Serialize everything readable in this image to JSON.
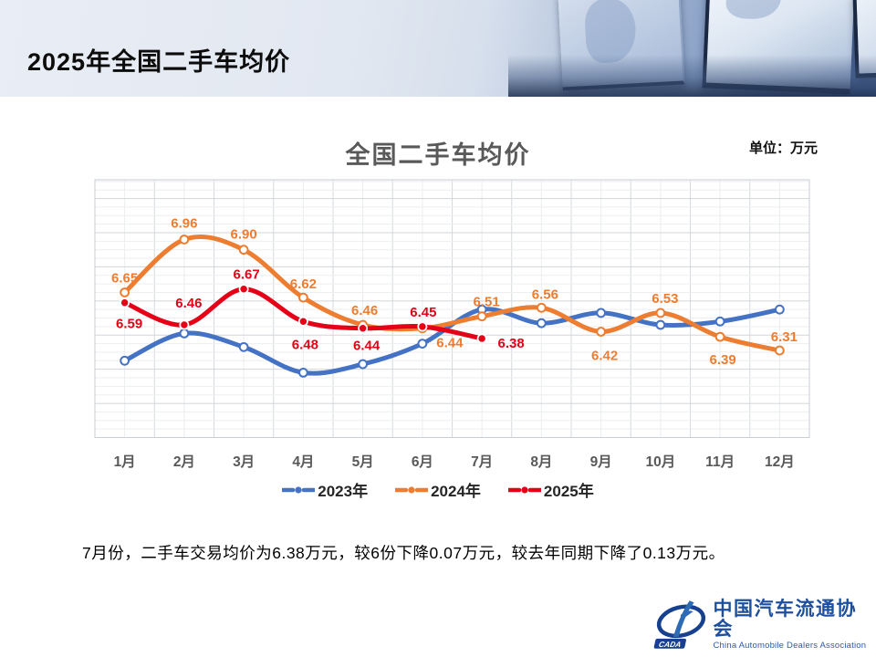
{
  "header": {
    "title": "2025年全国二手车均价"
  },
  "chart": {
    "title": "全国二手车均价",
    "unit_label": "单位：万元"
  },
  "chart_data": {
    "type": "line",
    "title": "全国二手车均价",
    "unit": "万元",
    "categories": [
      "1月",
      "2月",
      "3月",
      "4月",
      "5月",
      "6月",
      "7月",
      "8月",
      "9月",
      "10月",
      "11月",
      "12月"
    ],
    "series": [
      {
        "name": "2023年",
        "color": "#4472c4",
        "values": [
          6.25,
          6.41,
          6.33,
          6.18,
          6.23,
          6.35,
          6.55,
          6.47,
          6.53,
          6.46,
          6.48,
          6.55
        ],
        "data_labels": false,
        "marker": "open"
      },
      {
        "name": "2024年",
        "color": "#ed7d31",
        "values": [
          6.65,
          6.96,
          6.9,
          6.62,
          6.46,
          6.44,
          6.51,
          6.56,
          6.42,
          6.53,
          6.39,
          6.31
        ],
        "data_labels": true,
        "marker": "open",
        "label_offsets": [
          [
            0,
            -15
          ],
          [
            0,
            -17
          ],
          [
            0,
            -16
          ],
          [
            0,
            -14
          ],
          [
            2,
            -15
          ],
          [
            30,
            17
          ],
          [
            5,
            -15
          ],
          [
            4,
            -14
          ],
          [
            4,
            27
          ],
          [
            5,
            -15
          ],
          [
            3,
            26
          ],
          [
            5,
            -14
          ]
        ]
      },
      {
        "name": "2025年",
        "color": "#e60017",
        "values": [
          6.59,
          6.46,
          6.67,
          6.48,
          6.44,
          6.45,
          6.38
        ],
        "data_labels": true,
        "marker": "solid",
        "label_offsets": [
          [
            5,
            24
          ],
          [
            5,
            -23
          ],
          [
            3,
            -15
          ],
          [
            2,
            26
          ],
          [
            4,
            20
          ],
          [
            1,
            -15
          ],
          [
            32,
            6
          ]
        ]
      }
    ],
    "ylim": [
      5.8,
      7.31
    ],
    "y_minor_step": 0.05,
    "y_major_step": 0.2,
    "grid": true,
    "smooth": true,
    "legend_position": "bottom",
    "note": "2023年 series has no visible data labels in the chart"
  },
  "footer": {
    "note": "7月份，二手车交易均价为6.38万元，较6份下降0.07万元，较去年同期下降了0.13万元。"
  },
  "logo": {
    "mark_text": "CADA",
    "name_zh": "中国汽车流通协会",
    "name_en": "China Automobile Dealers Association"
  }
}
